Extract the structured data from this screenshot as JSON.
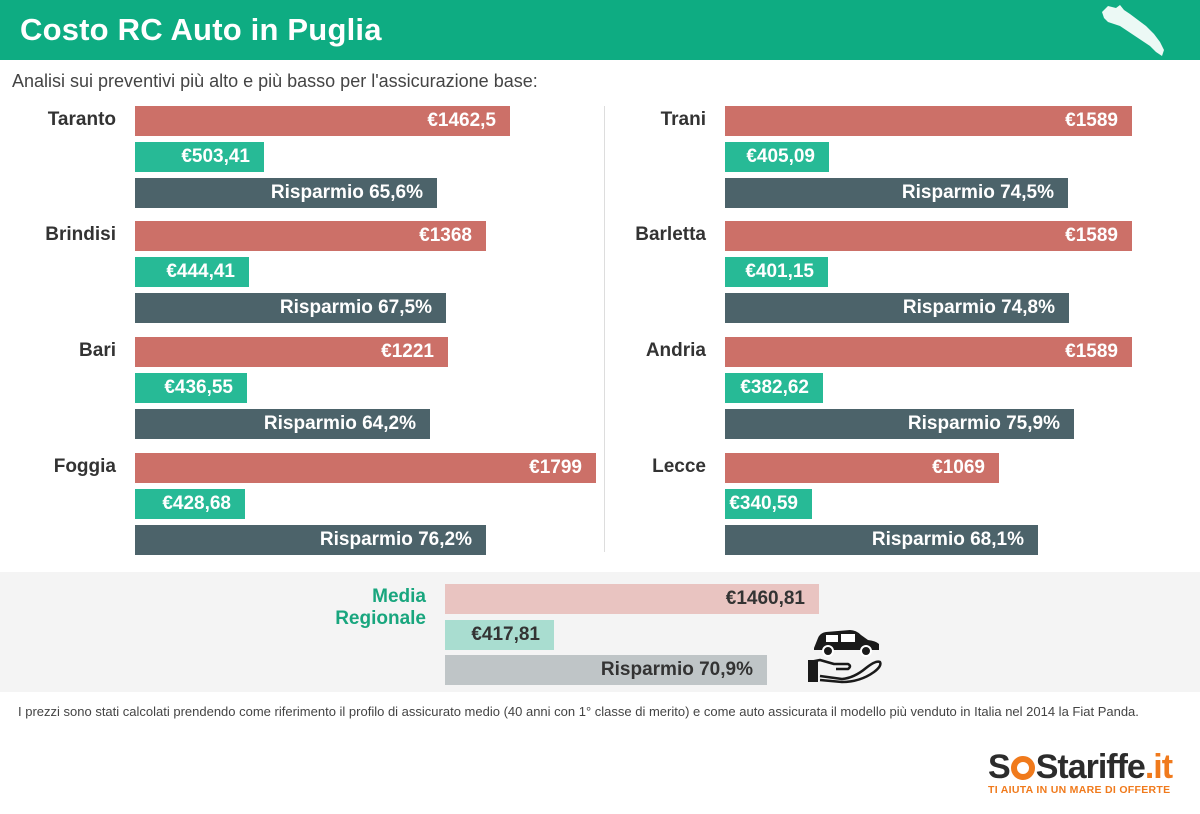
{
  "header": {
    "title": "Costo RC Auto in Puglia"
  },
  "subtitle": "Analisi sui preventivi più alto e più basso per l'assicurazione base:",
  "chart_data": {
    "type": "bar",
    "colors": {
      "high": "#cc7068",
      "low": "#27ba96",
      "save": "#4c636a"
    },
    "cities": [
      {
        "name": "Taranto",
        "high": 1462.5,
        "high_label": "€1462,5",
        "low": 503.41,
        "low_label": "€503,41",
        "saving": 65.6,
        "saving_label": "Risparmio 65,6%"
      },
      {
        "name": "Brindisi",
        "high": 1368,
        "high_label": "€1368",
        "low": 444.41,
        "low_label": "€444,41",
        "saving": 67.5,
        "saving_label": "Risparmio 67,5%"
      },
      {
        "name": "Bari",
        "high": 1221,
        "high_label": "€1221",
        "low": 436.55,
        "low_label": "€436,55",
        "saving": 64.2,
        "saving_label": "Risparmio 64,2%"
      },
      {
        "name": "Foggia",
        "high": 1799,
        "high_label": "€1799",
        "low": 428.68,
        "low_label": "€428,68",
        "saving": 76.2,
        "saving_label": "Risparmio 76,2%"
      },
      {
        "name": "Trani",
        "high": 1589,
        "high_label": "€1589",
        "low": 405.09,
        "low_label": "€405,09",
        "saving": 74.5,
        "saving_label": "Risparmio 74,5%"
      },
      {
        "name": "Barletta",
        "high": 1589,
        "high_label": "€1589",
        "low": 401.15,
        "low_label": "€401,15",
        "saving": 74.8,
        "saving_label": "Risparmio 74,8%"
      },
      {
        "name": "Andria",
        "high": 1589,
        "high_label": "€1589",
        "low": 382.62,
        "low_label": "€382,62",
        "saving": 75.9,
        "saving_label": "Risparmio 75,9%"
      },
      {
        "name": "Lecce",
        "high": 1069,
        "high_label": "€1069",
        "low": 340.59,
        "low_label": "€340,59",
        "saving": 68.1,
        "saving_label": "Risparmio 68,1%"
      }
    ],
    "average": {
      "label_line1": "Media",
      "label_line2": "Regionale",
      "high": 1460.81,
      "high_label": "€1460,81",
      "low": 417.81,
      "low_label": "€417,81",
      "saving": 70.9,
      "saving_label": "Risparmio 70,9%"
    }
  },
  "note": "I prezzi sono stati calcolati prendendo come riferimento il profilo di assicurato medio (40 anni con 1° classe di merito) e come auto assicurata il modello più venduto in Italia nel 2014 la Fiat Panda.",
  "logo": {
    "text_s1": "S",
    "text_s2": "S",
    "text_rest": "tariffe",
    "text_tld": ".it",
    "tagline": "TI AIUTA IN UN MARE DI OFFERTE"
  }
}
